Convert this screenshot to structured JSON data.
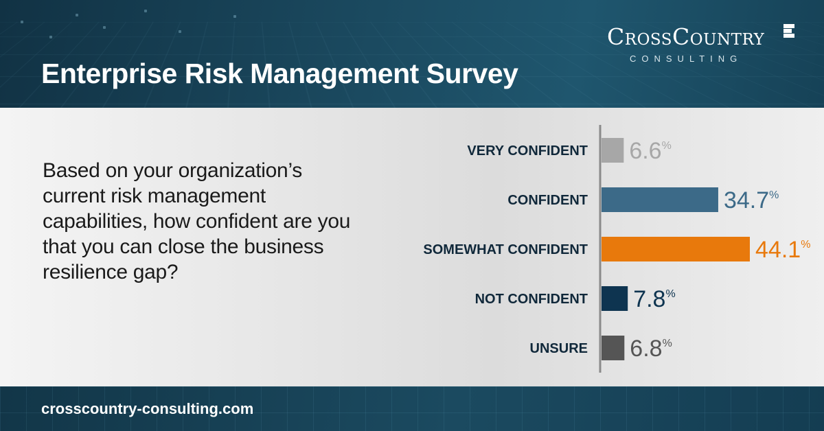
{
  "header": {
    "title": "Enterprise Risk Management Survey",
    "logo_name": "CrossCountry",
    "logo_sub": "CONSULTING"
  },
  "question": "Based on your organization’s current risk management capabilities, how confident are you that you can close the business resilience gap?",
  "footer": {
    "url": "crosscountry-consulting.com"
  },
  "chart_data": {
    "type": "bar",
    "orientation": "horizontal",
    "categories": [
      "VERY CONFIDENT",
      "CONFIDENT",
      "SOMEWHAT CONFIDENT",
      "NOT CONFIDENT",
      "UNSURE"
    ],
    "values": [
      6.6,
      34.7,
      44.1,
      7.8,
      6.8
    ],
    "value_labels": [
      "6.6",
      "34.7",
      "44.1",
      "7.8",
      "6.8"
    ],
    "unit": "%",
    "colors": [
      "#a7a7a7",
      "#3c6a88",
      "#e8790c",
      "#0e3450",
      "#555555"
    ],
    "label_colors": [
      "#a7a7a7",
      "#3c6a88",
      "#e8790c",
      "#0e3450",
      "#555555"
    ],
    "xlim": [
      0,
      44.1
    ],
    "title": "",
    "xlabel": "",
    "ylabel": "",
    "grid": false
  }
}
